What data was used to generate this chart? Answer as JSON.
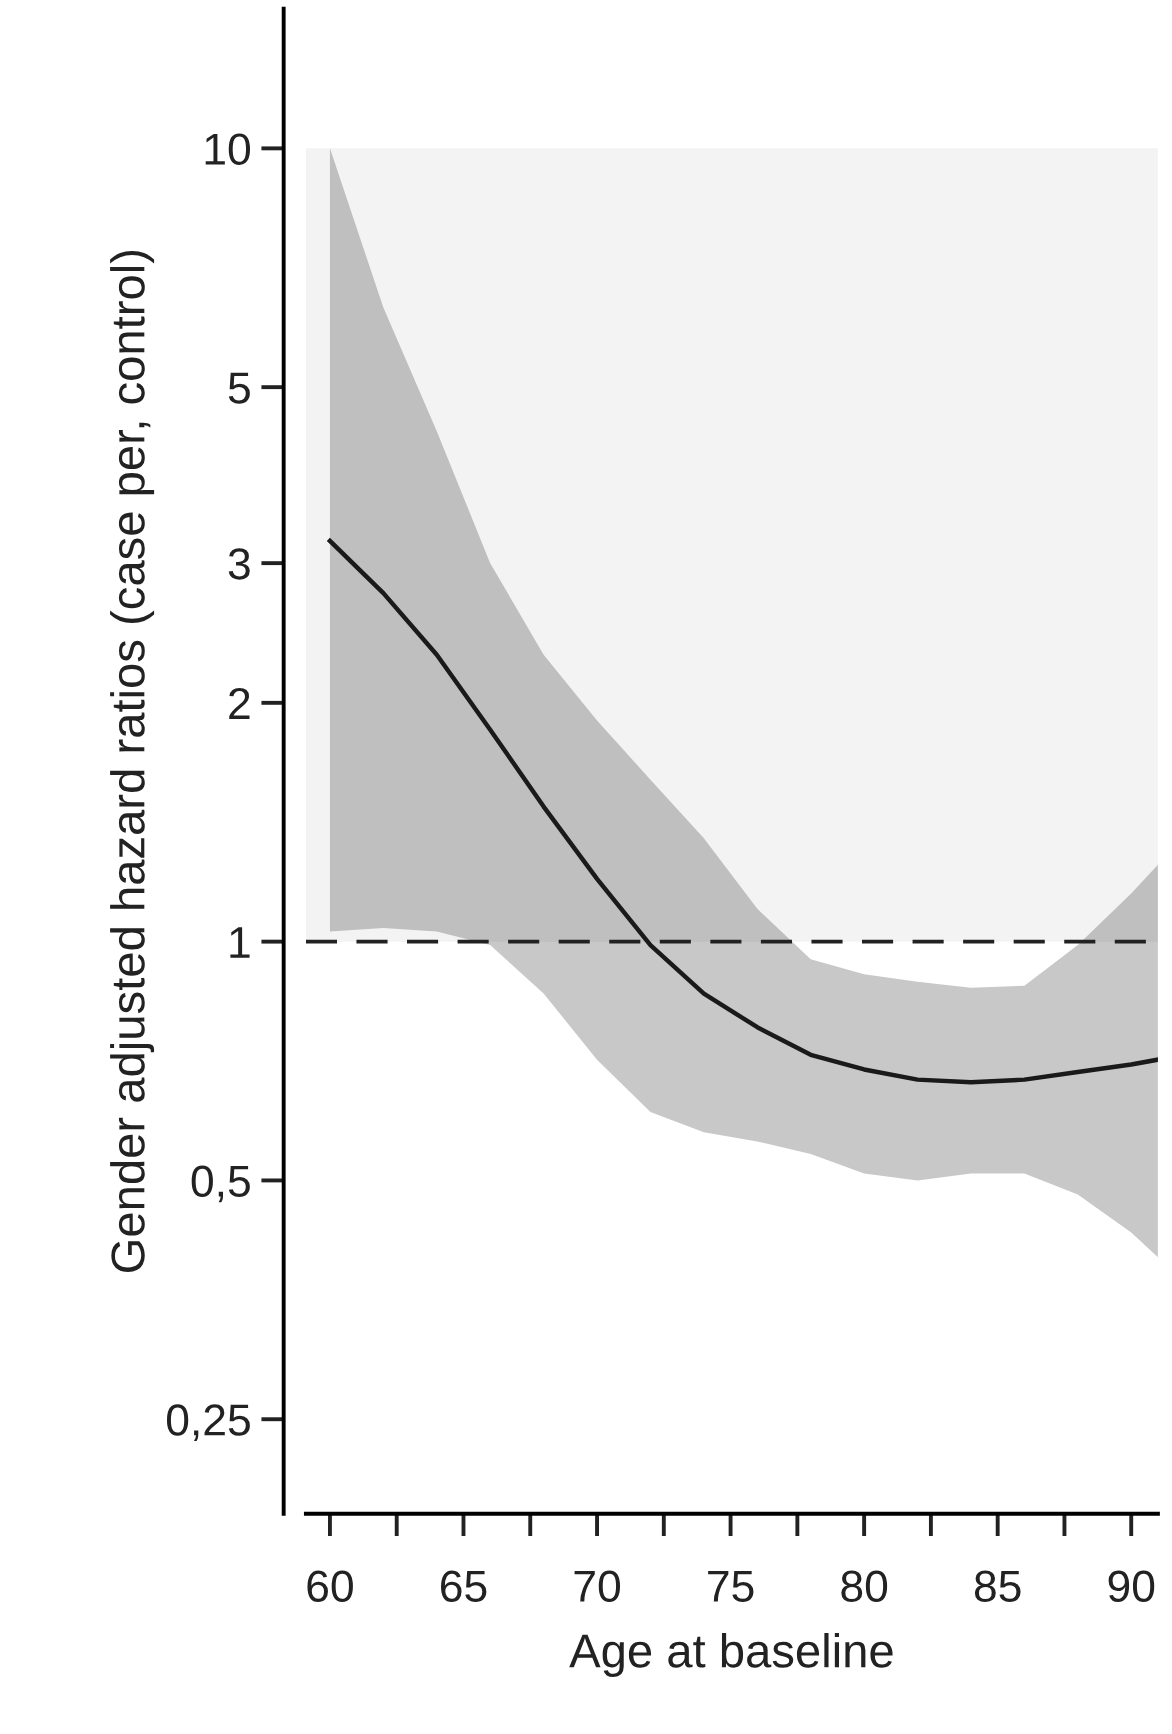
{
  "chart_data": {
    "type": "line",
    "xlabel": "Age at baseline",
    "ylabel": "Gender adjusted hazard ratios (case per, control)",
    "x": [
      60,
      62,
      64,
      66,
      68,
      70,
      72,
      74,
      76,
      78,
      80,
      82,
      84,
      86,
      88,
      90,
      91
    ],
    "series": [
      {
        "color": "#1a1a1a",
        "values": [
          3.2,
          2.75,
          2.3,
          1.85,
          1.48,
          1.2,
          0.99,
          0.86,
          0.78,
          0.72,
          0.69,
          0.67,
          0.665,
          0.67,
          0.685,
          0.7,
          0.71
        ],
        "upper": [
          10,
          6.3,
          4.4,
          3.0,
          2.3,
          1.9,
          1.6,
          1.35,
          1.1,
          0.95,
          0.91,
          0.89,
          0.875,
          0.88,
          0.99,
          1.15,
          1.25
        ],
        "lower": [
          1.03,
          1.04,
          1.03,
          0.99,
          0.86,
          0.71,
          0.61,
          0.575,
          0.56,
          0.54,
          0.51,
          0.5,
          0.51,
          0.51,
          0.48,
          0.43,
          0.4
        ]
      }
    ],
    "log": "y",
    "xlim": [
      59.1,
      91
    ],
    "ylim": [
      0.19,
      15
    ],
    "xticks": [
      60,
      {
        "value": 62.5,
        "label": null
      },
      65,
      {
        "value": 67.5,
        "label": null
      },
      70,
      {
        "value": 72.5,
        "label": null
      },
      75,
      {
        "value": 77.5,
        "label": null
      },
      80,
      {
        "value": 82.5,
        "label": null
      },
      85,
      {
        "value": 87.5,
        "label": null
      },
      90
    ],
    "yticks": [
      10,
      5,
      3,
      2,
      1,
      {
        "value": 0.5,
        "label": "0,5"
      },
      {
        "value": 0.25,
        "label": "0,25"
      }
    ],
    "ref_lines": [
      {
        "axis": "y",
        "value": 1,
        "color": "#222222",
        "line_style": "dashed"
      }
    ],
    "bands": [
      {
        "axis": "y",
        "from": 1,
        "to": 10,
        "color": "#f3f3f3"
      }
    ],
    "grid": false,
    "legend": false,
    "marker": "none",
    "line_style": "solid"
  }
}
